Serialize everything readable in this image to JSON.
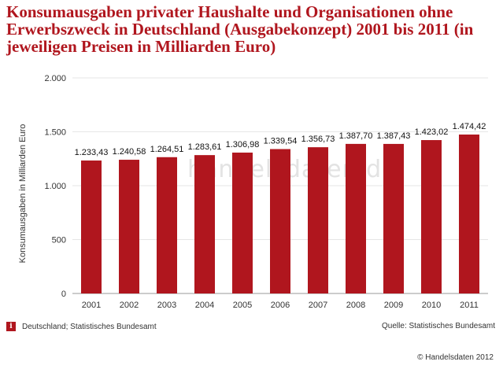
{
  "title": "Konsumausgaben privater Haushalte und Organisationen ohne Erwerbszweck in Deutschland (Ausgabekonzept) 2001 bis 2011 (in jeweiligen Preisen in Milliarden Euro)",
  "footer": {
    "info_icon": "info-icon",
    "region_source": "Deutschland; Statistisches Bundesamt",
    "quelle": "Quelle: Statistisches Bundesamt",
    "copyright": "© Handelsdaten 2012"
  },
  "watermark": "handelsdaten.de",
  "colors": {
    "bar": "#b0161e",
    "title": "#b0161e",
    "grid": "#e6e6e6"
  },
  "chart_data": {
    "type": "bar",
    "categories": [
      "2001",
      "2002",
      "2003",
      "2004",
      "2005",
      "2006",
      "2007",
      "2008",
      "2009",
      "2010",
      "2011"
    ],
    "values": [
      1233.43,
      1240.58,
      1264.51,
      1283.61,
      1306.98,
      1339.54,
      1356.73,
      1387.7,
      1387.43,
      1423.02,
      1474.42
    ],
    "value_labels": [
      "1.233,43",
      "1.240,58",
      "1.264,51",
      "1.283,61",
      "1.306,98",
      "1.339,54",
      "1.356,73",
      "1.387,70",
      "1.387,43",
      "1.423,02",
      "1.474,42"
    ],
    "title": "",
    "xlabel": "",
    "ylabel": "Konsumausgaben in Milliarden Euro",
    "ylim": [
      0,
      2000
    ],
    "yticks": [
      0,
      500,
      1000,
      1500,
      2000
    ],
    "ytick_labels": [
      "0",
      "500",
      "1.000",
      "1.500",
      "2.000"
    ],
    "grid": true,
    "legend": "none"
  }
}
